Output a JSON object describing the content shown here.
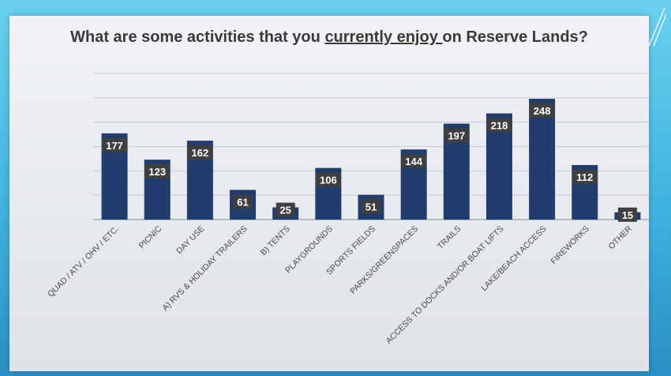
{
  "title": {
    "before": "What are some activities that you ",
    "underlined": "currently enjoy ",
    "after": "on Reserve Lands?"
  },
  "colors": {
    "bar": "#203d6e",
    "label_bg": "#3f3f3f",
    "label_text": "#ffffff",
    "grid": "#c8cbd0"
  },
  "chart_data": {
    "type": "bar",
    "categories": [
      "QUAD / ATV / OHV / ETC.",
      "PICNIC",
      "DAY USE",
      "A) RVS & HOLIDAY TRAILERS",
      "B) TENTS",
      "PLAYGROUNDS",
      "SPORTS FIELDS",
      "PARKS/GREENSPACES",
      "TRAILS",
      "ACCESS TO DOCKS AND/OR BOAT LIFTS",
      "LAKE/BEACH ACCESS",
      "FIREWORKS",
      "OTHER"
    ],
    "values": [
      177,
      123,
      162,
      61,
      25,
      106,
      51,
      144,
      197,
      218,
      248,
      112,
      15
    ],
    "data_labels": [
      "177",
      "123",
      "162",
      "61",
      "25",
      "106",
      "51",
      "144",
      "197",
      "218",
      "248",
      "112",
      "15"
    ],
    "ylim": [
      0,
      300
    ],
    "grid": true,
    "gridlines": [
      50,
      100,
      150,
      200,
      250,
      300
    ],
    "legend": "none"
  }
}
